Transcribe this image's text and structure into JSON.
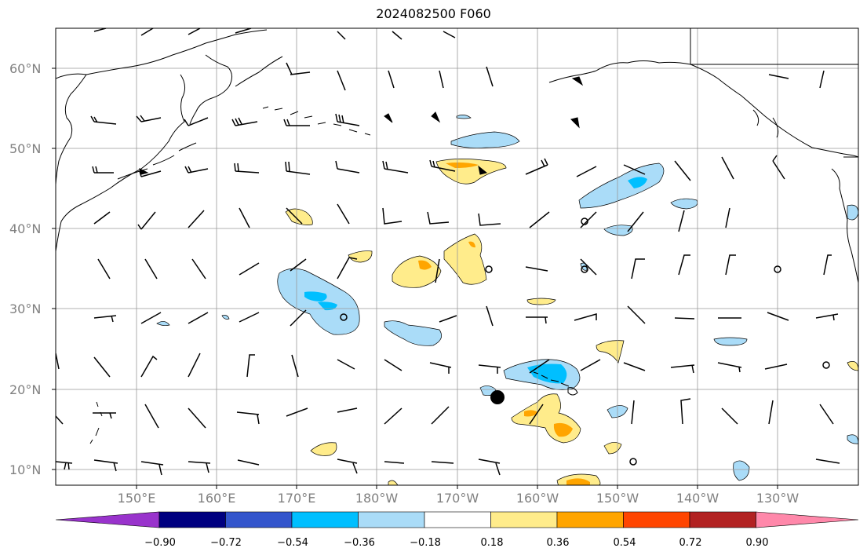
{
  "title": "2024082500 F060",
  "lat_labels": [
    "60°N",
    "50°N",
    "40°N",
    "30°N",
    "20°N",
    "10°N"
  ],
  "lon_labels": [
    "150°E",
    "160°E",
    "170°E",
    "180°W",
    "170°W",
    "160°W",
    "150°W",
    "140°W",
    "130°W"
  ],
  "colorbar": {
    "ticks": [
      "−0.90",
      "−0.72",
      "−0.54",
      "−0.36",
      "−0.18",
      "0.18",
      "0.36",
      "0.54",
      "0.72",
      "0.90"
    ],
    "colors": [
      "#9933cc",
      "#000080",
      "#3355cc",
      "#00bfff",
      "#aadcf8",
      "#ffffff",
      "#ffec8b",
      "#ffa500",
      "#ff4500",
      "#b22222",
      "#ff88aa"
    ]
  },
  "colors": {
    "frame": "#000000",
    "grid": "#999999",
    "coast": "#000000",
    "tick_text": "#808080"
  }
}
